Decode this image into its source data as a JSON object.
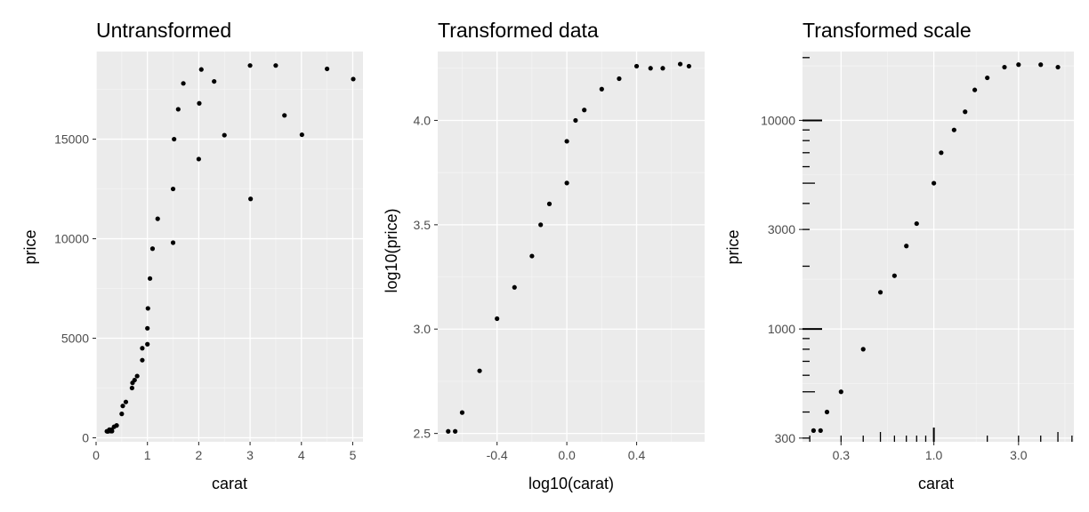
{
  "chart_data": [
    {
      "type": "scatter",
      "title": "Untransformed",
      "xlabel": "carat",
      "ylabel": "price",
      "xlim": [
        0,
        5.2
      ],
      "ylim": [
        -200,
        19400
      ],
      "x_ticks": [
        0,
        1,
        2,
        3,
        4,
        5
      ],
      "x_tick_labels": [
        "0",
        "1",
        "2",
        "3",
        "4",
        "5"
      ],
      "y_ticks": [
        0,
        5000,
        10000,
        15000
      ],
      "y_tick_labels": [
        "0",
        "5000",
        "10000",
        "15000"
      ],
      "grid": true,
      "point_color": "#000000",
      "points": [
        [
          0.23,
          326
        ],
        [
          0.21,
          326
        ],
        [
          0.23,
          327
        ],
        [
          0.29,
          334
        ],
        [
          0.31,
          335
        ],
        [
          0.24,
          336
        ],
        [
          0.3,
          402
        ],
        [
          0.26,
          410
        ],
        [
          0.35,
          552
        ],
        [
          0.4,
          620
        ],
        [
          0.5,
          1200
        ],
        [
          0.52,
          1600
        ],
        [
          0.58,
          1800
        ],
        [
          0.7,
          2500
        ],
        [
          0.71,
          2760
        ],
        [
          0.75,
          2900
        ],
        [
          0.8,
          3100
        ],
        [
          0.9,
          3900
        ],
        [
          0.9,
          4500
        ],
        [
          1.0,
          4700
        ],
        [
          1.0,
          5500
        ],
        [
          1.01,
          6500
        ],
        [
          1.05,
          8000
        ],
        [
          1.1,
          9500
        ],
        [
          1.2,
          11000
        ],
        [
          1.5,
          9800
        ],
        [
          1.5,
          12500
        ],
        [
          1.52,
          15000
        ],
        [
          1.6,
          16500
        ],
        [
          1.7,
          17800
        ],
        [
          2.0,
          14000
        ],
        [
          2.01,
          16800
        ],
        [
          2.05,
          18500
        ],
        [
          2.3,
          17900
        ],
        [
          2.5,
          15200
        ],
        [
          3.0,
          18700
        ],
        [
          3.01,
          12000
        ],
        [
          3.5,
          18700
        ],
        [
          3.67,
          16193
        ],
        [
          4.01,
          15223
        ],
        [
          4.5,
          18531
        ],
        [
          5.01,
          18018
        ]
      ]
    },
    {
      "type": "scatter",
      "title": "Transformed data",
      "xlabel": "log10(carat)",
      "ylabel": "log10(price)",
      "xlim": [
        -0.74,
        0.79
      ],
      "ylim": [
        2.46,
        4.33
      ],
      "x_ticks": [
        -0.4,
        0.0,
        0.4
      ],
      "x_tick_labels": [
        "-0.4",
        "0.0",
        "0.4"
      ],
      "y_ticks": [
        2.5,
        3.0,
        3.5,
        4.0
      ],
      "y_tick_labels": [
        "2.5",
        "3.0",
        "3.5",
        "4.0"
      ],
      "grid": true,
      "point_color": "#000000",
      "points": [
        [
          -0.64,
          2.51
        ],
        [
          -0.68,
          2.51
        ],
        [
          -0.6,
          2.6
        ],
        [
          -0.5,
          2.8
        ],
        [
          -0.4,
          3.05
        ],
        [
          -0.3,
          3.2
        ],
        [
          -0.2,
          3.35
        ],
        [
          -0.15,
          3.5
        ],
        [
          -0.1,
          3.6
        ],
        [
          0.0,
          3.7
        ],
        [
          0.0,
          3.9
        ],
        [
          0.05,
          4.0
        ],
        [
          0.1,
          4.05
        ],
        [
          0.2,
          4.15
        ],
        [
          0.3,
          4.2
        ],
        [
          0.4,
          4.26
        ],
        [
          0.48,
          4.25
        ],
        [
          0.55,
          4.25
        ],
        [
          0.65,
          4.27
        ],
        [
          0.7,
          4.26
        ]
      ]
    },
    {
      "type": "scatter",
      "title": "Transformed scale",
      "xlabel": "carat",
      "ylabel": "price",
      "x_scale": "log10",
      "y_scale": "log10",
      "xlim": [
        0.182,
        6.15
      ],
      "ylim": [
        288,
        21380
      ],
      "x_ticks": [
        0.3,
        1.0,
        3.0
      ],
      "x_tick_labels": [
        "0.3",
        "1.0",
        "3.0"
      ],
      "y_ticks": [
        300,
        1000,
        3000,
        10000
      ],
      "y_tick_labels": [
        "300",
        "1000",
        "3000",
        "10000"
      ],
      "grid": true,
      "log_ticks_rug": true,
      "point_color": "#000000",
      "points": [
        [
          0.23,
          326
        ],
        [
          0.21,
          326
        ],
        [
          0.25,
          400
        ],
        [
          0.3,
          500
        ],
        [
          0.4,
          800
        ],
        [
          0.5,
          1500
        ],
        [
          0.6,
          1800
        ],
        [
          0.7,
          2500
        ],
        [
          0.8,
          3200
        ],
        [
          1.0,
          5000
        ],
        [
          1.1,
          7000
        ],
        [
          1.3,
          9000
        ],
        [
          1.5,
          11000
        ],
        [
          1.7,
          14000
        ],
        [
          2.0,
          16000
        ],
        [
          2.5,
          18000
        ],
        [
          3.0,
          18500
        ],
        [
          4.0,
          18500
        ],
        [
          5.0,
          18000
        ]
      ]
    }
  ]
}
